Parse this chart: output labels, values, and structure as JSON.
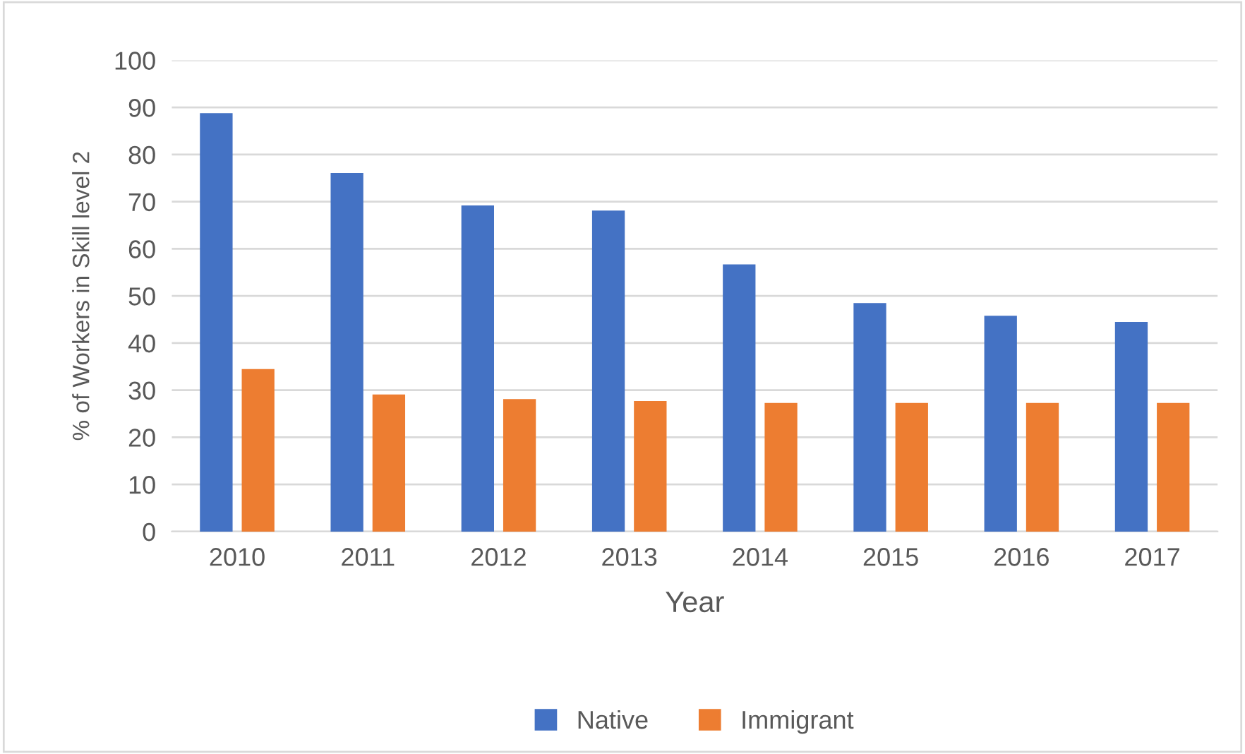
{
  "chart_data": {
    "type": "bar",
    "xlabel": "Year",
    "ylabel": "% of Workers in Skill level 2",
    "categories": [
      "2010",
      "2011",
      "2012",
      "2013",
      "2014",
      "2015",
      "2016",
      "2017"
    ],
    "series": [
      {
        "name": "Native",
        "color": "#4472c4",
        "values": [
          88.8,
          76.1,
          69.2,
          68.1,
          56.7,
          48.5,
          45.8,
          44.5
        ]
      },
      {
        "name": "Immigrant",
        "color": "#ed7d31",
        "values": [
          34.5,
          29.1,
          28.1,
          27.7,
          27.3,
          27.3,
          27.3,
          27.3
        ]
      }
    ],
    "ylim": [
      0,
      100
    ],
    "yticks": [
      0,
      10,
      20,
      30,
      40,
      50,
      60,
      70,
      80,
      90,
      100
    ],
    "grid": "y",
    "legend": "bottom"
  }
}
